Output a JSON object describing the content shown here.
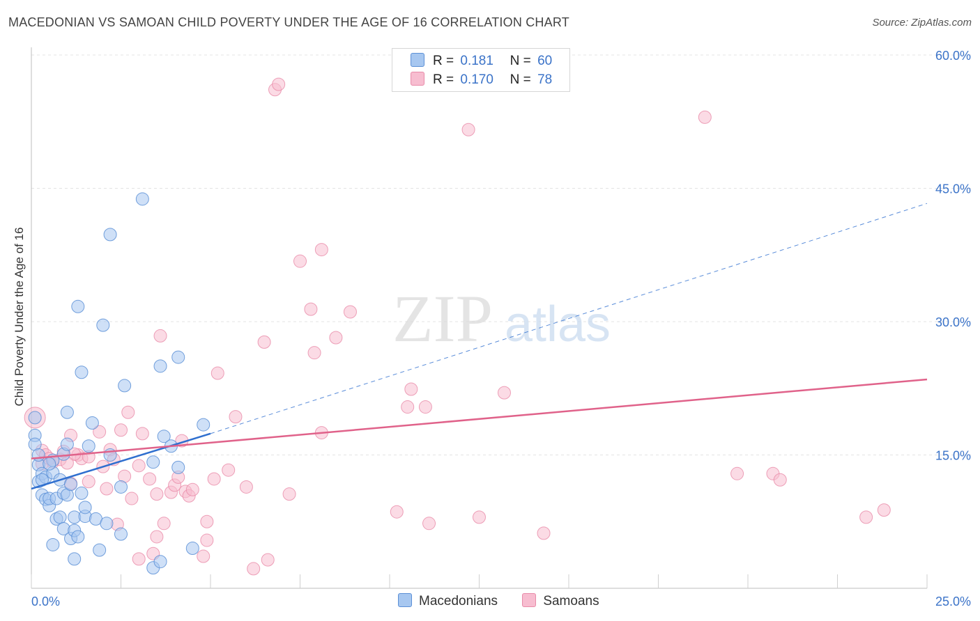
{
  "title": "MACEDONIAN VS SAMOAN CHILD POVERTY UNDER THE AGE OF 16 CORRELATION CHART",
  "source": "Source: ZipAtlas.com",
  "watermark": {
    "zip": "ZIP",
    "atlas": "atlas"
  },
  "legend": {
    "r_label": "R =",
    "n_label": "N =",
    "rows": [
      {
        "series": "Macedonians",
        "r": "0.181",
        "n": "60"
      },
      {
        "series": "Samoans",
        "r": "0.170",
        "n": "78"
      }
    ]
  },
  "colors": {
    "macedonians_fill": "#a7c7f0",
    "macedonians_stroke": "#5b8fd6",
    "macedonians_line": "#2f6fcf",
    "samoans_fill": "#f7bdd0",
    "samoans_stroke": "#e88aa8",
    "samoans_line": "#e0628a",
    "tick_label": "#3b73c8"
  },
  "chart_data": {
    "type": "scatter",
    "title": "MACEDONIAN VS SAMOAN CHILD POVERTY UNDER THE AGE OF 16 CORRELATION CHART",
    "xlabel": "",
    "ylabel": "Child Poverty Under the Age of 16",
    "xlim": [
      0,
      25
    ],
    "ylim": [
      0,
      60
    ],
    "x_tick_labels": [
      "0.0%",
      "25.0%"
    ],
    "y_ticks": [
      15,
      30,
      45,
      60
    ],
    "y_tick_labels": [
      "15.0%",
      "30.0%",
      "45.0%",
      "60.0%"
    ],
    "grid": true,
    "legend_position": "top-center",
    "bottom_legend": [
      "Macedonians",
      "Samoans"
    ],
    "series": [
      {
        "name": "Macedonians",
        "trend": {
          "x0": 0,
          "y0": 11.2,
          "x1": 5,
          "y1": 17.4,
          "dashed_to_x": 25,
          "dashed_to_y": 43.3
        },
        "points": [
          [
            0.1,
            19.2
          ],
          [
            0.1,
            17.2
          ],
          [
            0.1,
            16.2
          ],
          [
            0.2,
            13.9
          ],
          [
            0.2,
            12.0
          ],
          [
            0.3,
            12.9
          ],
          [
            0.3,
            10.5
          ],
          [
            0.4,
            12.5
          ],
          [
            0.4,
            10.0
          ],
          [
            0.5,
            9.3
          ],
          [
            0.5,
            10.1
          ],
          [
            0.6,
            13.0
          ],
          [
            0.6,
            14.4
          ],
          [
            0.6,
            4.9
          ],
          [
            0.7,
            10.1
          ],
          [
            0.7,
            7.8
          ],
          [
            0.8,
            12.2
          ],
          [
            0.8,
            8.0
          ],
          [
            0.9,
            15.1
          ],
          [
            0.9,
            10.7
          ],
          [
            0.9,
            6.7
          ],
          [
            1.0,
            16.2
          ],
          [
            1.0,
            19.8
          ],
          [
            1.0,
            10.5
          ],
          [
            1.1,
            11.7
          ],
          [
            1.1,
            5.6
          ],
          [
            1.2,
            6.5
          ],
          [
            1.2,
            8.0
          ],
          [
            1.2,
            3.3
          ],
          [
            1.3,
            31.7
          ],
          [
            1.3,
            5.8
          ],
          [
            1.4,
            24.3
          ],
          [
            1.4,
            10.7
          ],
          [
            1.5,
            8.1
          ],
          [
            1.5,
            9.1
          ],
          [
            1.6,
            16.0
          ],
          [
            1.7,
            18.6
          ],
          [
            1.8,
            7.8
          ],
          [
            1.9,
            4.3
          ],
          [
            2.0,
            29.6
          ],
          [
            2.1,
            7.3
          ],
          [
            2.2,
            39.8
          ],
          [
            2.2,
            15.0
          ],
          [
            2.5,
            11.4
          ],
          [
            2.6,
            22.8
          ],
          [
            2.5,
            6.1
          ],
          [
            3.1,
            43.8
          ],
          [
            3.4,
            14.2
          ],
          [
            3.4,
            2.3
          ],
          [
            3.6,
            25.0
          ],
          [
            3.6,
            3.0
          ],
          [
            3.7,
            17.1
          ],
          [
            3.9,
            16.0
          ],
          [
            4.1,
            26.0
          ],
          [
            4.1,
            13.6
          ],
          [
            4.5,
            4.5
          ],
          [
            4.8,
            18.4
          ],
          [
            0.2,
            15.0
          ],
          [
            0.5,
            14.0
          ],
          [
            0.3,
            12.2
          ]
        ]
      },
      {
        "name": "Samoans",
        "trend": {
          "x0": 0,
          "y0": 14.6,
          "x1": 25,
          "y1": 23.5
        },
        "points": [
          [
            0.1,
            19.2
          ],
          [
            0.3,
            15.5
          ],
          [
            0.4,
            15.0
          ],
          [
            0.5,
            14.6
          ],
          [
            0.6,
            14.2
          ],
          [
            0.8,
            14.5
          ],
          [
            0.9,
            15.4
          ],
          [
            1.1,
            17.2
          ],
          [
            1.1,
            11.8
          ],
          [
            1.3,
            15.0
          ],
          [
            1.4,
            14.6
          ],
          [
            1.6,
            14.8
          ],
          [
            1.6,
            12.0
          ],
          [
            1.9,
            17.6
          ],
          [
            2.0,
            13.7
          ],
          [
            2.1,
            11.2
          ],
          [
            2.2,
            15.6
          ],
          [
            2.3,
            14.5
          ],
          [
            2.4,
            7.2
          ],
          [
            2.5,
            17.8
          ],
          [
            2.6,
            12.6
          ],
          [
            2.7,
            19.8
          ],
          [
            2.8,
            10.1
          ],
          [
            3.0,
            13.8
          ],
          [
            3.0,
            3.3
          ],
          [
            3.1,
            17.4
          ],
          [
            3.3,
            12.3
          ],
          [
            3.4,
            3.9
          ],
          [
            3.5,
            10.6
          ],
          [
            3.5,
            5.8
          ],
          [
            3.6,
            28.4
          ],
          [
            3.7,
            7.3
          ],
          [
            3.9,
            10.8
          ],
          [
            4.0,
            11.6
          ],
          [
            4.1,
            12.5
          ],
          [
            4.2,
            16.6
          ],
          [
            4.3,
            10.9
          ],
          [
            4.4,
            10.4
          ],
          [
            4.5,
            11.1
          ],
          [
            4.8,
            3.6
          ],
          [
            4.9,
            5.4
          ],
          [
            4.9,
            7.5
          ],
          [
            5.1,
            12.3
          ],
          [
            5.2,
            24.2
          ],
          [
            5.5,
            13.3
          ],
          [
            5.7,
            19.3
          ],
          [
            6.0,
            11.4
          ],
          [
            6.2,
            2.2
          ],
          [
            6.5,
            27.7
          ],
          [
            6.6,
            3.2
          ],
          [
            6.8,
            56.1
          ],
          [
            6.9,
            56.7
          ],
          [
            7.2,
            10.6
          ],
          [
            7.5,
            36.8
          ],
          [
            7.8,
            31.4
          ],
          [
            7.9,
            26.5
          ],
          [
            8.1,
            38.1
          ],
          [
            8.1,
            17.5
          ],
          [
            8.5,
            28.2
          ],
          [
            8.9,
            31.1
          ],
          [
            10.2,
            8.6
          ],
          [
            10.6,
            22.4
          ],
          [
            10.5,
            20.4
          ],
          [
            11.0,
            20.4
          ],
          [
            11.1,
            7.3
          ],
          [
            12.2,
            51.6
          ],
          [
            12.5,
            8.0
          ],
          [
            13.2,
            22.0
          ],
          [
            14.3,
            6.2
          ],
          [
            18.8,
            53.0
          ],
          [
            19.7,
            12.9
          ],
          [
            20.7,
            12.9
          ],
          [
            20.9,
            12.2
          ],
          [
            23.3,
            8.0
          ],
          [
            23.8,
            8.8
          ],
          [
            0.3,
            14.0
          ],
          [
            1.2,
            15.1
          ],
          [
            1.0,
            14.1
          ]
        ]
      }
    ]
  }
}
